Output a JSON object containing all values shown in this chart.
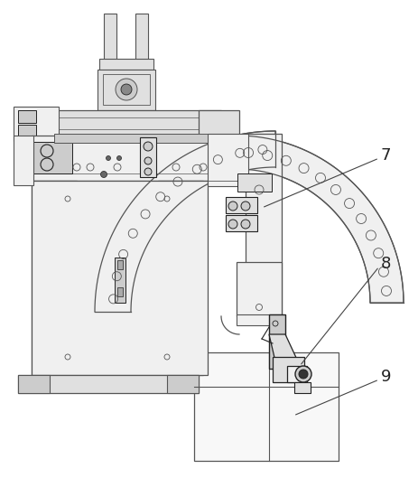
{
  "bg_color": "#ffffff",
  "lc": "#555555",
  "dc": "#222222",
  "fc_light": "#f0f0f0",
  "fc_mid": "#e0e0e0",
  "fc_dark": "#cccccc",
  "fc_xdark": "#aaaaaa",
  "label_7": "7",
  "label_8": "8",
  "label_9": "9",
  "label_fs": 13
}
